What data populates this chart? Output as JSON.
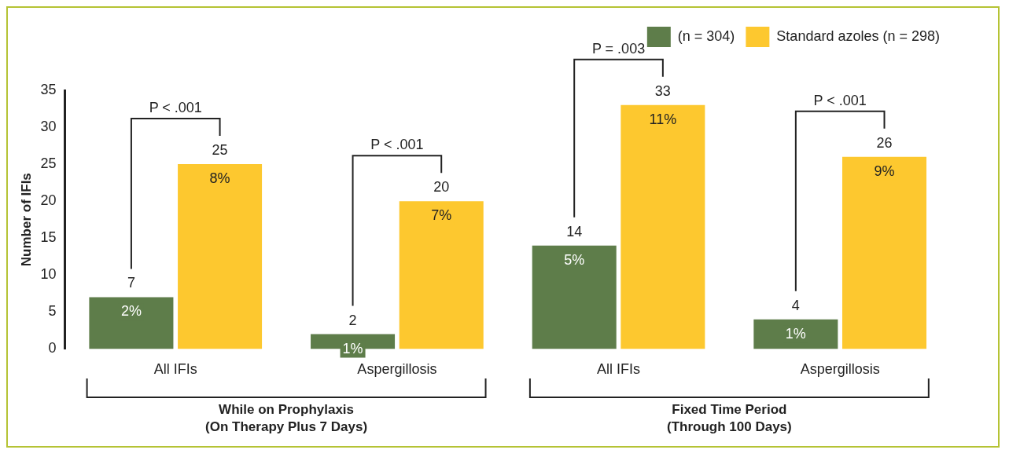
{
  "chart_data": {
    "type": "bar",
    "ylabel": "Number of IFIs",
    "categories": [
      "All IFIs",
      "Aspergillosis",
      "All IFIs",
      "Aspergillosis"
    ],
    "series": [
      {
        "name": "(n = 304)",
        "color": "#5e7d4a",
        "values": [
          7,
          2,
          14,
          4
        ]
      },
      {
        "name": "Standard azoles (n = 298)",
        "color": "#fdc82f",
        "values": [
          25,
          20,
          33,
          26
        ]
      }
    ],
    "ylim": [
      0,
      35
    ],
    "yticks": [
      0,
      5,
      10,
      15,
      20,
      25,
      30,
      35
    ],
    "grid": false,
    "legend": "top right",
    "data_labels": true,
    "annotations": [
      "2%",
      "1%",
      "5%",
      "1%",
      "8%",
      "7%",
      "11%",
      "9%",
      "P < .001",
      "P < .001",
      "P = .003",
      "P < .001",
      "While on Prophylaxis\n(On Therapy Plus 7 Days)",
      "Fixed Time Period\n(Through 100 Days)"
    ]
  }
}
